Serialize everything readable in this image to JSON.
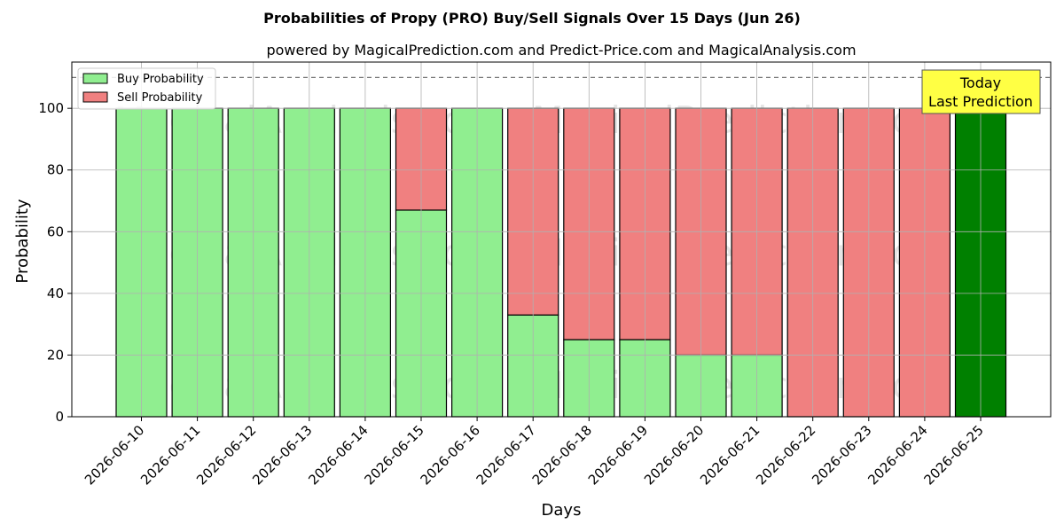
{
  "chart_data": {
    "type": "bar",
    "stacked": true,
    "title": "Probabilities of Propy (PRO) Buy/Sell Signals Over 15 Days (Jun 26)",
    "subtitle": "powered by MagicalPrediction.com and Predict-Price.com and MagicalAnalysis.com",
    "xlabel": "Days",
    "ylabel": "Probability",
    "ylim": [
      0,
      115
    ],
    "yticks": [
      0,
      20,
      40,
      60,
      80,
      100
    ],
    "reference_line": 110,
    "grid": true,
    "legend_position": "top-left",
    "categories": [
      "2026-06-10",
      "2026-06-11",
      "2026-06-12",
      "2026-06-13",
      "2026-06-14",
      "2026-06-15",
      "2026-06-16",
      "2026-06-17",
      "2026-06-18",
      "2026-06-19",
      "2026-06-20",
      "2026-06-21",
      "2026-06-22",
      "2026-06-23",
      "2026-06-24",
      "2026-06-25"
    ],
    "series": [
      {
        "name": "Buy Probability",
        "color": "#90ee90",
        "values": [
          100,
          100,
          100,
          100,
          100,
          67,
          100,
          33,
          25,
          25,
          20,
          20,
          0,
          0,
          0,
          100
        ]
      },
      {
        "name": "Sell Probability",
        "color": "#f08080",
        "values": [
          0,
          0,
          0,
          0,
          0,
          33,
          0,
          67,
          75,
          75,
          80,
          80,
          100,
          100,
          100,
          0
        ]
      }
    ],
    "highlight": {
      "index": 15,
      "color": "#008000",
      "label_line1": "Today",
      "label_line2": "Last Prediction",
      "box_color": "#ffff44"
    },
    "watermarks": [
      "MagicalAnalysis.com",
      "MagicalPrediction.com"
    ]
  }
}
